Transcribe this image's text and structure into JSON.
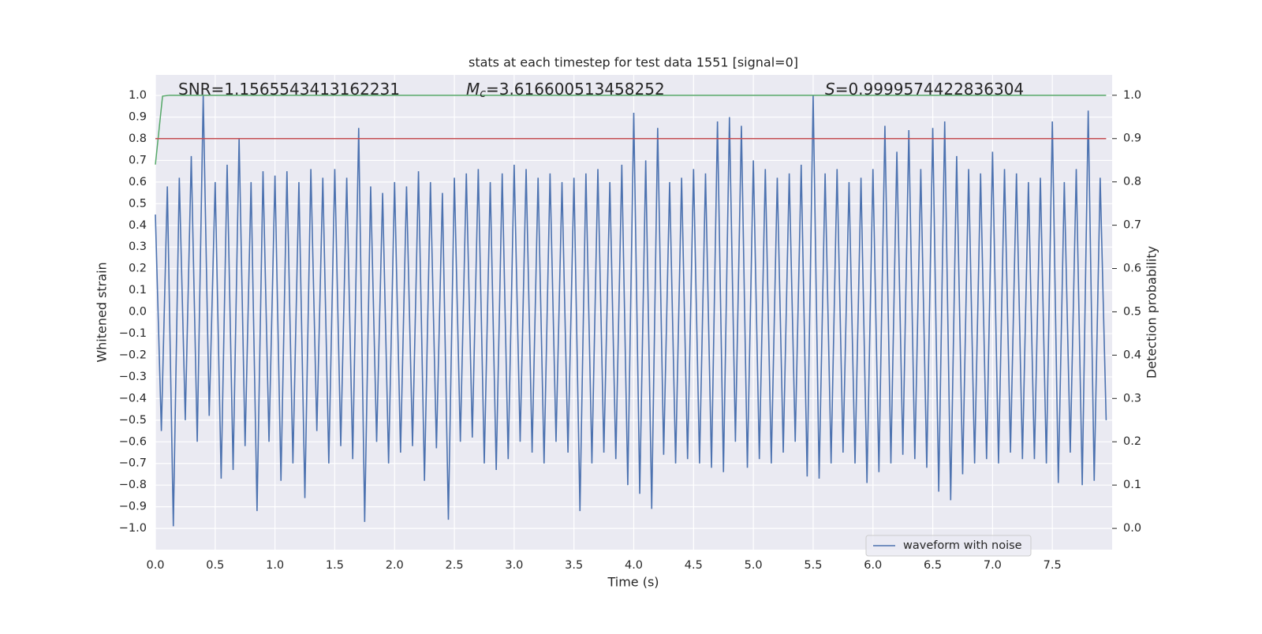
{
  "chart_data": {
    "type": "line",
    "title": "stats at each timestep for test data 1551 [signal=0]",
    "xlabel": "Time (s)",
    "ylabel": "Whitened strain",
    "y2label": "Detection probability",
    "annotations": [
      {
        "text": "SNR=1.1565543413162231"
      },
      {
        "italic": "M",
        "sub": "c",
        "text": "=3.616600513458252"
      },
      {
        "italic": "S",
        "text": "=0.9999574422836304"
      }
    ],
    "xlim": [
      0,
      8.0
    ],
    "xticks": [
      {
        "value": 0,
        "label": "0.0"
      },
      {
        "value": 0.5,
        "label": "0.5"
      },
      {
        "value": 1,
        "label": "1.0"
      },
      {
        "value": 1.5,
        "label": "1.5"
      },
      {
        "value": 2,
        "label": "2.0"
      },
      {
        "value": 2.5,
        "label": "2.5"
      },
      {
        "value": 3,
        "label": "3.0"
      },
      {
        "value": 3.5,
        "label": "3.5"
      },
      {
        "value": 4,
        "label": "4.0"
      },
      {
        "value": 4.5,
        "label": "4.5"
      },
      {
        "value": 5,
        "label": "5.0"
      },
      {
        "value": 5.5,
        "label": "5.5"
      },
      {
        "value": 6,
        "label": "6.0"
      },
      {
        "value": 6.5,
        "label": "6.5"
      },
      {
        "value": 7,
        "label": "7.0"
      },
      {
        "value": 7.5,
        "label": "7.5"
      }
    ],
    "ylim": [
      -1.098,
      1.095
    ],
    "yticks": [
      {
        "value": -1,
        "label": "−1.0"
      },
      {
        "value": -0.9,
        "label": "−0.9"
      },
      {
        "value": -0.8,
        "label": "−0.8"
      },
      {
        "value": -0.7,
        "label": "−0.7"
      },
      {
        "value": -0.6,
        "label": "−0.6"
      },
      {
        "value": -0.5,
        "label": "−0.5"
      },
      {
        "value": -0.4,
        "label": "−0.4"
      },
      {
        "value": -0.3,
        "label": "−0.3"
      },
      {
        "value": -0.2,
        "label": "−0.2"
      },
      {
        "value": -0.1,
        "label": "−0.1"
      },
      {
        "value": 0,
        "label": "0.0"
      },
      {
        "value": 0.1,
        "label": "0.1"
      },
      {
        "value": 0.2,
        "label": "0.2"
      },
      {
        "value": 0.3,
        "label": "0.3"
      },
      {
        "value": 0.4,
        "label": "0.4"
      },
      {
        "value": 0.5,
        "label": "0.5"
      },
      {
        "value": 0.6,
        "label": "0.6"
      },
      {
        "value": 0.7,
        "label": "0.7"
      },
      {
        "value": 0.8,
        "label": "0.8"
      },
      {
        "value": 0.9,
        "label": "0.9"
      },
      {
        "value": 1,
        "label": "1.0"
      }
    ],
    "y2lim": [
      -0.049,
      1.047
    ],
    "y2ticks": [
      {
        "value": 0,
        "label": "0.0"
      },
      {
        "value": 0.1,
        "label": "0.1"
      },
      {
        "value": 0.2,
        "label": "0.2"
      },
      {
        "value": 0.3,
        "label": "0.3"
      },
      {
        "value": 0.4,
        "label": "0.4"
      },
      {
        "value": 0.5,
        "label": "0.5"
      },
      {
        "value": 0.6,
        "label": "0.6"
      },
      {
        "value": 0.7,
        "label": "0.7"
      },
      {
        "value": 0.8,
        "label": "0.8"
      },
      {
        "value": 0.9,
        "label": "0.9"
      },
      {
        "value": 1,
        "label": "1.0"
      }
    ],
    "grid": true,
    "legend": "lower right",
    "series": [
      {
        "name": "waveform with noise",
        "color": "#4c72b0",
        "x": [
          0,
          0.05,
          0.1,
          0.15,
          0.2,
          0.25,
          0.3,
          0.35,
          0.4,
          0.45,
          0.5,
          0.55,
          0.6,
          0.65,
          0.7,
          0.75,
          0.8,
          0.85,
          0.9,
          0.95,
          1,
          1.05,
          1.1,
          1.15,
          1.2,
          1.25,
          1.3,
          1.35,
          1.4,
          1.45,
          1.5,
          1.55,
          1.6,
          1.65,
          1.7,
          1.75,
          1.8,
          1.85,
          1.9,
          1.95,
          2,
          2.05,
          2.1,
          2.15,
          2.2,
          2.25,
          2.3,
          2.35,
          2.4,
          2.45,
          2.5,
          2.55,
          2.6,
          2.65,
          2.7,
          2.75,
          2.8,
          2.85,
          2.9,
          2.95,
          3,
          3.05,
          3.1,
          3.15,
          3.2,
          3.25,
          3.3,
          3.35,
          3.4,
          3.45,
          3.5,
          3.55,
          3.6,
          3.65,
          3.7,
          3.75,
          3.8,
          3.85,
          3.9,
          3.95,
          4,
          4.05,
          4.1,
          4.15,
          4.2,
          4.25,
          4.3,
          4.35,
          4.4,
          4.45,
          4.5,
          4.55,
          4.6,
          4.65,
          4.7,
          4.75,
          4.8,
          4.85,
          4.9,
          4.95,
          5,
          5.05,
          5.1,
          5.15,
          5.2,
          5.25,
          5.3,
          5.35,
          5.4,
          5.45,
          5.5,
          5.55,
          5.6,
          5.65,
          5.7,
          5.75,
          5.8,
          5.85,
          5.9,
          5.95,
          6,
          6.05,
          6.1,
          6.15,
          6.2,
          6.25,
          6.3,
          6.35,
          6.4,
          6.45,
          6.5,
          6.55,
          6.6,
          6.65,
          6.7,
          6.75,
          6.8,
          6.85,
          6.9,
          6.95,
          7,
          7.05,
          7.1,
          7.15,
          7.2,
          7.25,
          7.3,
          7.35,
          7.4,
          7.45,
          7.5,
          7.55,
          7.6,
          7.65,
          7.7,
          7.75,
          7.8,
          7.85,
          7.9,
          7.95
        ],
        "values": [
          0.45,
          -0.55,
          0.58,
          -0.99,
          0.62,
          -0.5,
          0.72,
          -0.6,
          1.0,
          -0.48,
          0.6,
          -0.77,
          0.68,
          -0.73,
          0.8,
          -0.62,
          0.6,
          -0.92,
          0.65,
          -0.6,
          0.63,
          -0.78,
          0.65,
          -0.7,
          0.6,
          -0.86,
          0.66,
          -0.55,
          0.62,
          -0.7,
          0.66,
          -0.62,
          0.62,
          -0.68,
          0.85,
          -0.97,
          0.58,
          -0.6,
          0.55,
          -0.7,
          0.6,
          -0.65,
          0.58,
          -0.62,
          0.65,
          -0.78,
          0.6,
          -0.63,
          0.55,
          -0.96,
          0.62,
          -0.6,
          0.64,
          -0.58,
          0.66,
          -0.7,
          0.6,
          -0.73,
          0.64,
          -0.68,
          0.68,
          -0.6,
          0.66,
          -0.65,
          0.62,
          -0.7,
          0.64,
          -0.6,
          0.6,
          -0.65,
          0.62,
          -0.92,
          0.64,
          -0.7,
          0.66,
          -0.65,
          0.6,
          -0.68,
          0.68,
          -0.8,
          0.92,
          -0.84,
          0.7,
          -0.91,
          0.85,
          -0.66,
          0.6,
          -0.7,
          0.62,
          -0.68,
          0.66,
          -0.7,
          0.64,
          -0.72,
          0.88,
          -0.74,
          0.9,
          -0.6,
          0.86,
          -0.72,
          0.7,
          -0.68,
          0.66,
          -0.7,
          0.62,
          -0.65,
          0.64,
          -0.6,
          0.68,
          -0.76,
          1.0,
          -0.77,
          0.64,
          -0.7,
          0.66,
          -0.65,
          0.6,
          -0.7,
          0.62,
          -0.79,
          0.66,
          -0.74,
          0.86,
          -0.7,
          0.74,
          -0.66,
          0.84,
          -0.68,
          0.66,
          -0.72,
          0.85,
          -0.83,
          0.88,
          -0.87,
          0.72,
          -0.75,
          0.66,
          -0.7,
          0.64,
          -0.68,
          0.74,
          -0.7,
          0.66,
          -0.65,
          0.64,
          -0.68,
          0.6,
          -0.68,
          0.62,
          -0.7,
          0.88,
          -0.79,
          0.6,
          -0.65,
          0.66,
          -0.8,
          0.93,
          -0.78,
          0.62,
          -0.5
        ]
      },
      {
        "color": "#55a868",
        "axis": "y2",
        "x": [
          0,
          0.06,
          0.12,
          7.95
        ],
        "values": [
          0.84,
          0.998,
          1.0,
          1.0
        ]
      },
      {
        "color": "#c44e52",
        "axis": "y2",
        "x": [
          0,
          7.95
        ],
        "values": [
          0.9,
          0.9
        ]
      }
    ]
  }
}
